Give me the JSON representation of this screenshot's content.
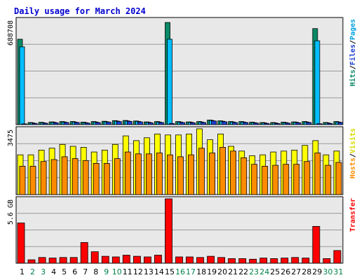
{
  "chart_data": {
    "type": "bar",
    "title": "Daily usage for March 2024",
    "x": [
      "1",
      "2",
      "3",
      "4",
      "5",
      "6",
      "7",
      "8",
      "9",
      "10",
      "11",
      "12",
      "13",
      "14",
      "15",
      "16",
      "17",
      "18",
      "19",
      "20",
      "21",
      "22",
      "23",
      "24",
      "25",
      "26",
      "27",
      "28",
      "29",
      "30",
      "31"
    ],
    "weekend_days": [
      "2",
      "3",
      "9",
      "10",
      "16",
      "17",
      "23",
      "24",
      "30",
      "31"
    ],
    "colors": {
      "hits": "#0a8a66",
      "files": "#00bfff",
      "pages": "#1e3fd0",
      "visits": "#ffff00",
      "hosts": "#ff8c00",
      "transfer": "#ff0000",
      "title": "#0000d0",
      "weekday_label": "#000000",
      "weekend_label": "#00804a",
      "panel_bg": "#e8e8e8",
      "border": "#000000"
    },
    "panels": [
      {
        "id": "requests",
        "max_label": "688708",
        "ymax": 688708,
        "side_label": [
          {
            "text": "Hits",
            "color": "#0a8a66"
          },
          {
            "text": "/",
            "color": "#000000"
          },
          {
            "text": "Files",
            "color": "#1e3fd0"
          },
          {
            "text": "/",
            "color": "#000000"
          },
          {
            "text": "Pages",
            "color": "#00a0e0"
          }
        ],
        "series": [
          {
            "key": "hits",
            "values": [
              560000,
              14000,
              15000,
              18000,
              20000,
              20000,
              16000,
              20000,
              22000,
              26000,
              27000,
              24000,
              18000,
              20000,
              670000,
              20000,
              18000,
              20000,
              30000,
              25000,
              20000,
              20000,
              16000,
              14000,
              14000,
              16000,
              18000,
              20000,
              630000,
              14000,
              20000
            ]
          },
          {
            "key": "files",
            "values": [
              510000,
              11000,
              12000,
              15000,
              17000,
              17000,
              13000,
              17000,
              19000,
              23000,
              24000,
              21000,
              15000,
              17000,
              560000,
              17000,
              15000,
              17000,
              27000,
              22000,
              17000,
              17000,
              13000,
              11000,
              11000,
              13000,
              15000,
              17000,
              550000,
              11000,
              17000
            ]
          },
          {
            "key": "pages",
            "values": [
              5000,
              8000,
              9000,
              12000,
              14000,
              14000,
              10000,
              14000,
              16000,
              20000,
              21000,
              18000,
              12000,
              14000,
              8000,
              14000,
              12000,
              14000,
              24000,
              19000,
              14000,
              14000,
              10000,
              8000,
              8000,
              10000,
              12000,
              14000,
              6000,
              8000,
              14000
            ]
          }
        ]
      },
      {
        "id": "visitors",
        "max_label": "3475",
        "ymax": 3475,
        "side_label": [
          {
            "text": "Hosts",
            "color": "#ff8c00"
          },
          {
            "text": "/",
            "color": "#000000"
          },
          {
            "text": "Visits",
            "color": "#d8d800"
          }
        ],
        "series": [
          {
            "key": "visits",
            "values": [
              2100,
              2100,
              2350,
              2450,
              2650,
              2550,
              2500,
              2250,
              2350,
              2650,
              3100,
              2850,
              3000,
              3200,
              3150,
              3150,
              3200,
              3475,
              2900,
              3200,
              2550,
              2300,
              2050,
              2100,
              2250,
              2300,
              2350,
              2600,
              2850,
              2100,
              2300
            ]
          },
          {
            "key": "hosts",
            "values": [
              1500,
              1500,
              1750,
              1850,
              2000,
              1900,
              1800,
              1650,
              1650,
              1900,
              2250,
              2150,
              2150,
              2200,
              2100,
              2000,
              2100,
              2450,
              2200,
              2500,
              2300,
              1950,
              1600,
              1500,
              1550,
              1600,
              1600,
              1750,
              2200,
              1550,
              1700
            ]
          }
        ]
      },
      {
        "id": "transfer",
        "max_label": "5.6 GB",
        "ymax": 5.6,
        "side_label": [
          {
            "text": "Transfer",
            "color": "#ff0000"
          }
        ],
        "series": [
          {
            "key": "transfer",
            "values": [
              3.5,
              0.3,
              0.5,
              0.45,
              0.5,
              0.5,
              1.8,
              1.0,
              0.6,
              0.55,
              0.7,
              0.6,
              0.55,
              0.7,
              5.6,
              0.55,
              0.55,
              0.5,
              0.6,
              0.5,
              0.4,
              0.4,
              0.35,
              0.45,
              0.4,
              0.45,
              0.5,
              0.45,
              3.2,
              0.4,
              1.1
            ]
          }
        ]
      }
    ]
  }
}
